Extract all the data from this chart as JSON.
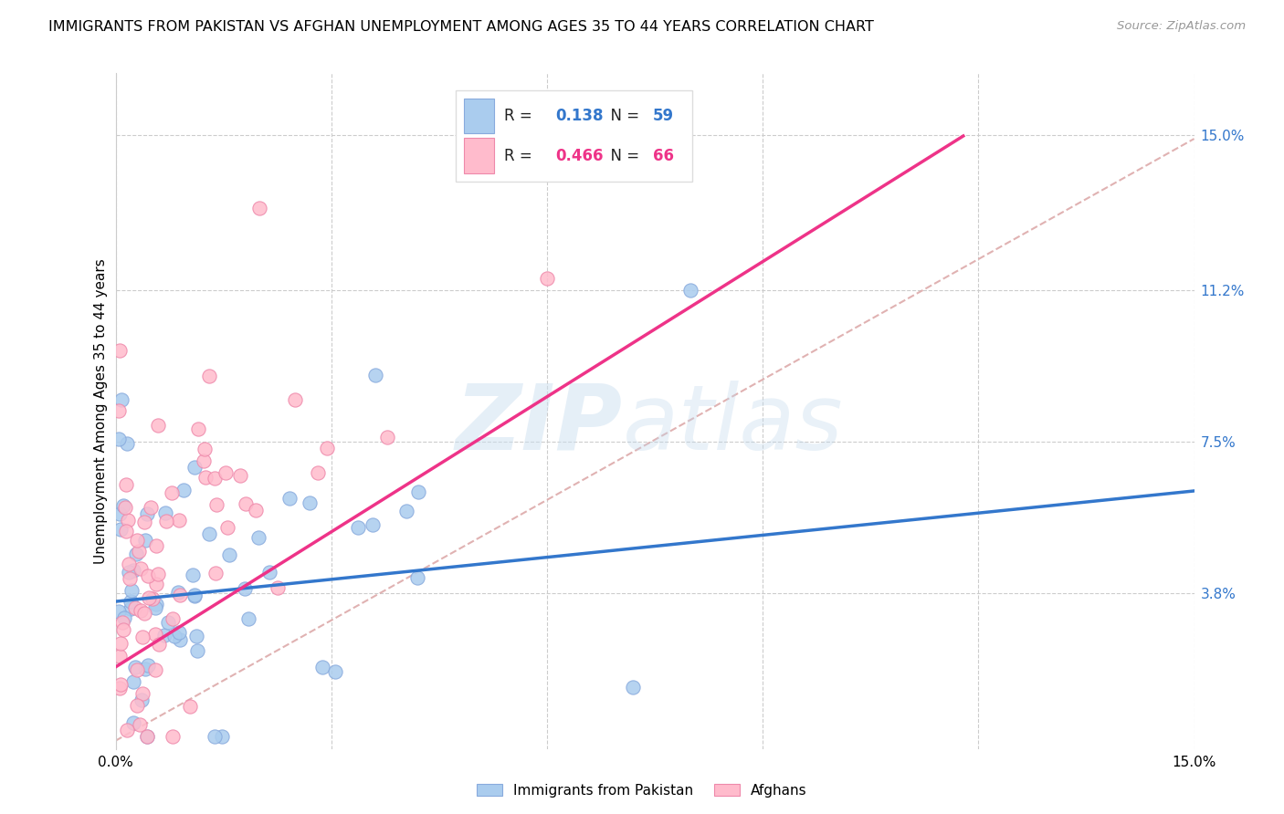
{
  "title": "IMMIGRANTS FROM PAKISTAN VS AFGHAN UNEMPLOYMENT AMONG AGES 35 TO 44 YEARS CORRELATION CHART",
  "source": "Source: ZipAtlas.com",
  "ylabel": "Unemployment Among Ages 35 to 44 years",
  "xlim": [
    0.0,
    15.0
  ],
  "ylim": [
    0.0,
    16.5
  ],
  "yticks": [
    3.8,
    7.5,
    11.2,
    15.0
  ],
  "ytick_labels": [
    "3.8%",
    "7.5%",
    "11.2%",
    "15.0%"
  ],
  "pakistan_color": "#aaccee",
  "pakistan_edge_color": "#88aadd",
  "afghan_color": "#ffbbcc",
  "afghan_edge_color": "#ee88aa",
  "pakistan_R": 0.138,
  "pakistan_N": 59,
  "afghan_R": 0.466,
  "afghan_N": 66,
  "trend_pakistan_color": "#3377cc",
  "trend_afghan_color": "#ee3388",
  "trend_dashed_color": "#ddaaaa",
  "background_color": "#ffffff",
  "title_fontsize": 11.5,
  "axis_label_fontsize": 11,
  "tick_fontsize": 11,
  "legend_fontsize": 12,
  "source_fontsize": 9.5
}
